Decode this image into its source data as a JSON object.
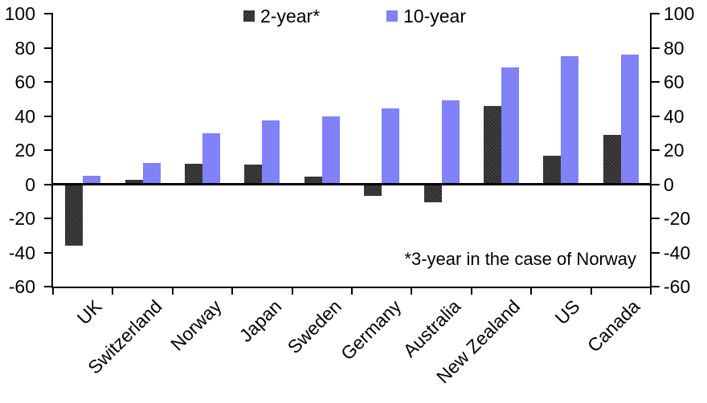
{
  "chart_data": {
    "type": "bar",
    "title": "",
    "categories": [
      "UK",
      "Switzerland",
      "Norway",
      "Japan",
      "Sweden",
      "Germany",
      "Australia",
      "New Zealand",
      "US",
      "Canada"
    ],
    "series": [
      {
        "name": "2-year*",
        "color": "#3c3c3c",
        "pattern": "fine-weave",
        "values": [
          -36,
          2.5,
          12,
          11.5,
          4.5,
          -7,
          -10.5,
          46,
          16.5,
          29
        ]
      },
      {
        "name": "10-year",
        "color": "#8181f8",
        "pattern": "solid",
        "values": [
          5,
          12.5,
          30,
          37.5,
          40,
          44.5,
          49,
          68.5,
          75,
          76
        ]
      }
    ],
    "ylim": [
      -60,
      100
    ],
    "yticks": [
      100,
      80,
      60,
      40,
      20,
      0,
      -20,
      -40,
      -60
    ],
    "y_axis_sides": "left-and-right",
    "grid": false,
    "legend_position": "top-center",
    "annotation": "*3-year in the case of Norway",
    "axis_color": "#000000",
    "background_color": "#ffffff"
  }
}
